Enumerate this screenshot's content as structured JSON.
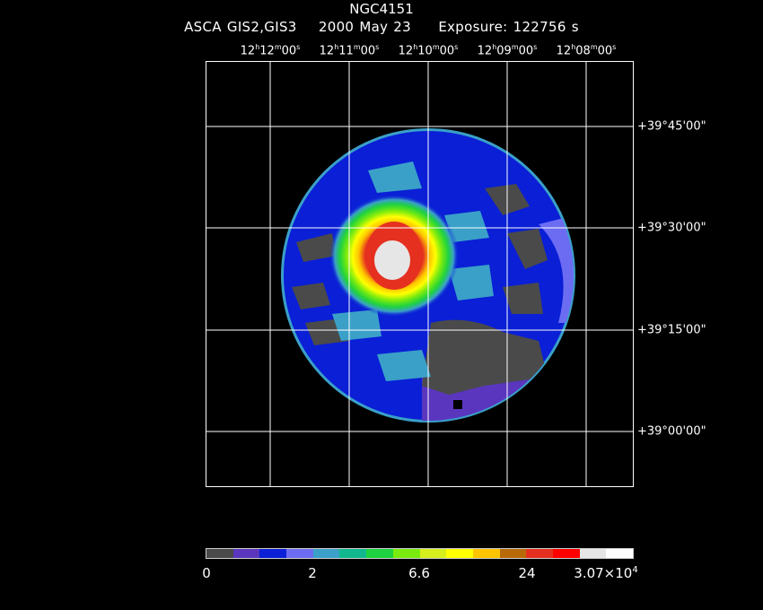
{
  "header": {
    "object": "NGC4151",
    "instrument": "ASCA GIS2,GIS3",
    "date": "2000 May 23",
    "exposure": "Exposure: 122756 s"
  },
  "ra_ticks": [
    {
      "h": "12",
      "m": "12",
      "s": "00"
    },
    {
      "h": "12",
      "m": "11",
      "s": "00"
    },
    {
      "h": "12",
      "m": "10",
      "s": "00"
    },
    {
      "h": "12",
      "m": "09",
      "s": "00"
    },
    {
      "h": "12",
      "m": "08",
      "s": "00"
    }
  ],
  "dec_ticks": [
    "+39°45'00\"",
    "+39°30'00\"",
    "+39°15'00\"",
    "+39°00'00\""
  ],
  "colorbar": {
    "colors": [
      "#4a4a4a",
      "#5a36bf",
      "#0a1fd6",
      "#6c6cf2",
      "#3aa0c8",
      "#11b88e",
      "#1fd23f",
      "#7aeb0f",
      "#d6ee1c",
      "#ffff00",
      "#ffc400",
      "#b86a0a",
      "#e53020",
      "#ff0000",
      "#e6e6e6",
      "#ffffff"
    ],
    "labels": {
      "l0": "0",
      "l1": "2",
      "l2": "6.6",
      "l3": "24",
      "l4_base": "3.07×10",
      "l4_exp": "4"
    }
  }
}
